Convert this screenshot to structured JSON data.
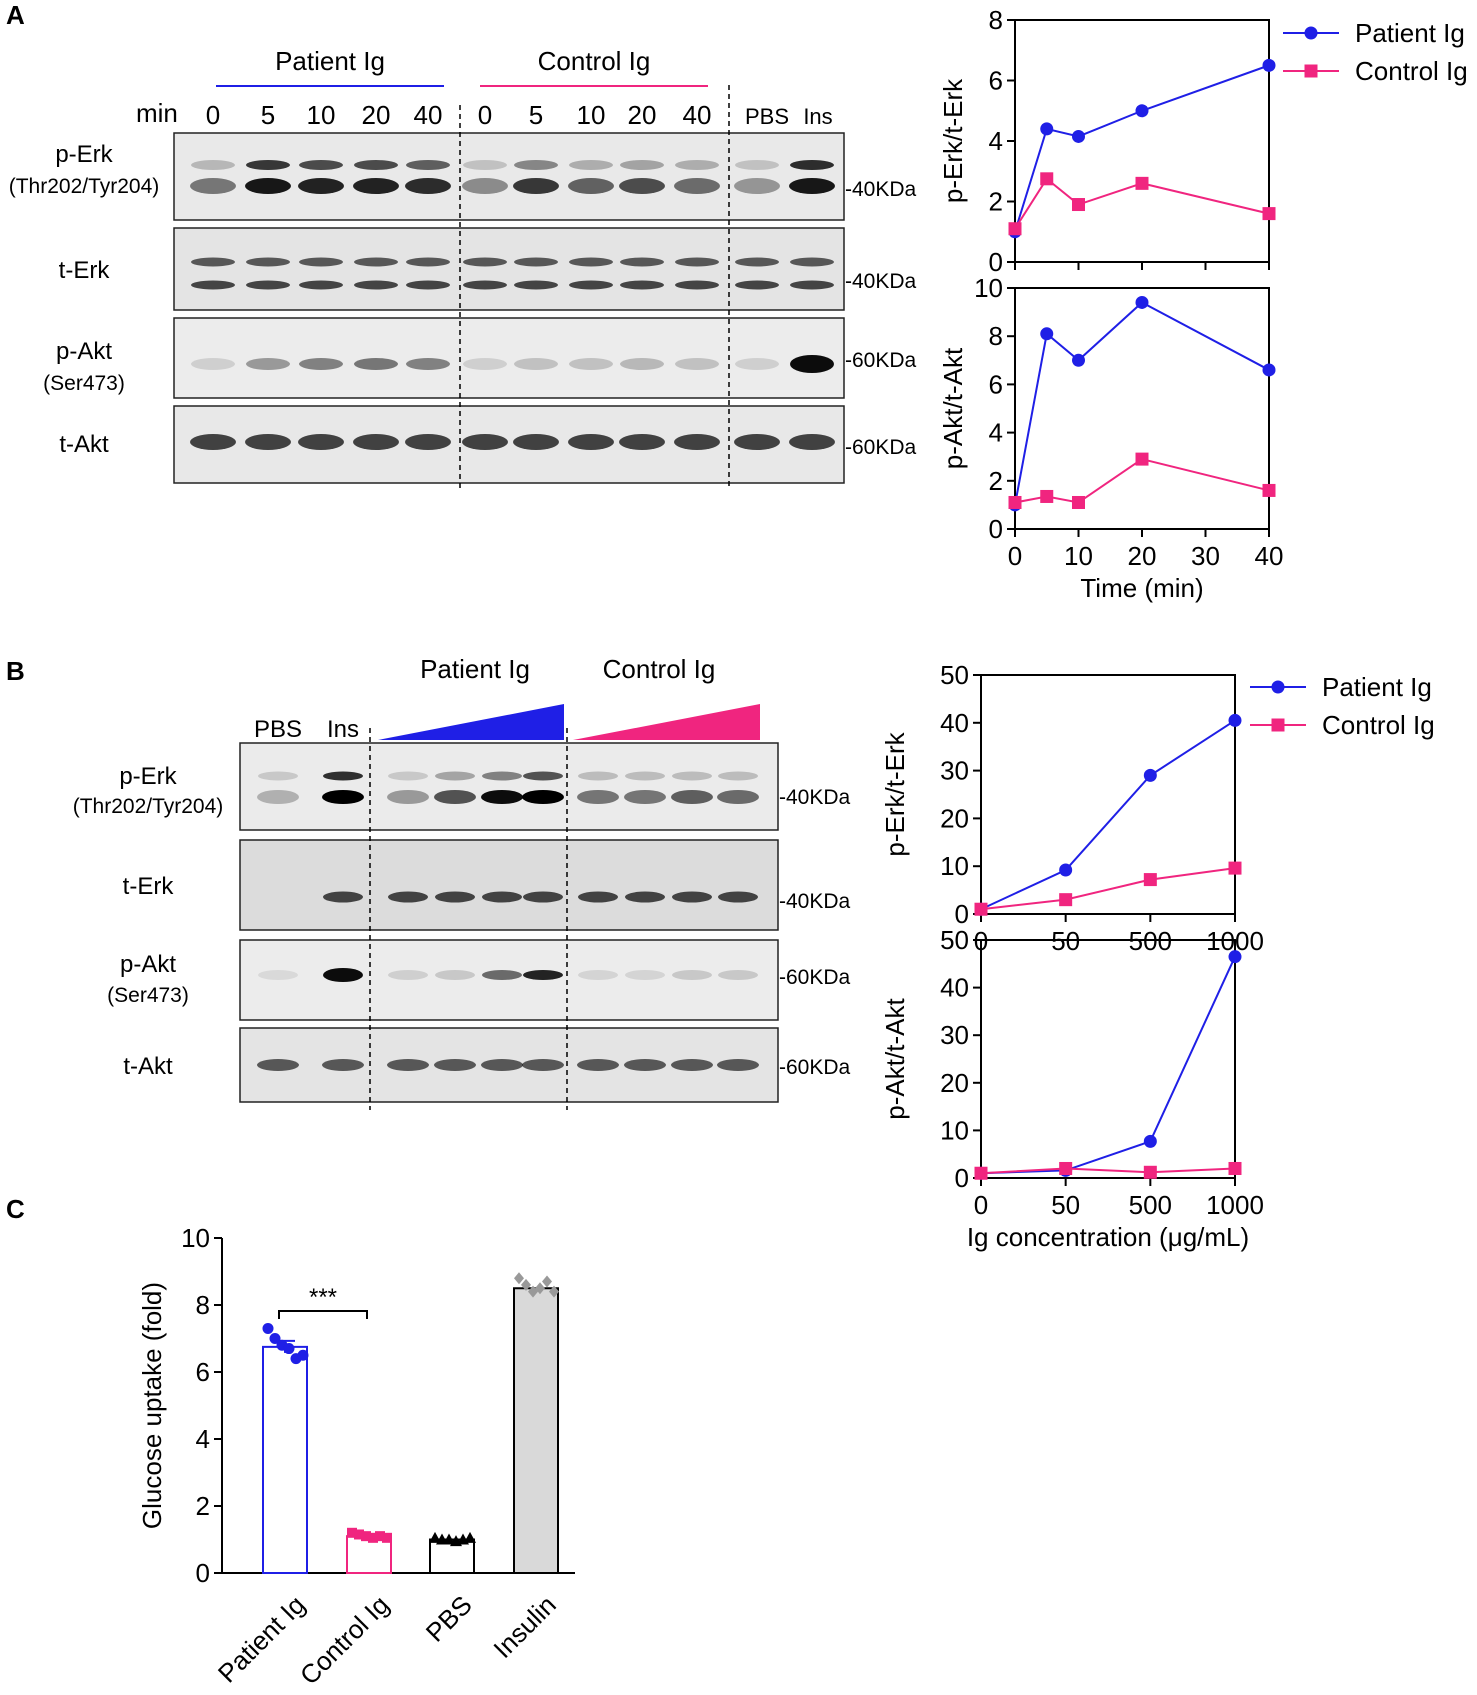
{
  "colors": {
    "patient": "#1f1fe6",
    "control": "#f0257f",
    "insulin_bar": "#d9d9d9"
  },
  "panel_a": {
    "label": "A",
    "blot": {
      "group_patient": "Patient Ig",
      "group_control": "Control Ig",
      "min_label": "min",
      "lanes": [
        "0",
        "5",
        "10",
        "20",
        "40",
        "0",
        "5",
        "10",
        "20",
        "40"
      ],
      "lane_pbs": "PBS",
      "lane_ins": "Ins",
      "rows": [
        {
          "name": "p-Erk",
          "sub": "(Thr202/Tyr204)",
          "kda": "-40KDa"
        },
        {
          "name": "t-Erk",
          "sub": "",
          "kda": "-40KDa"
        },
        {
          "name": "p-Akt",
          "sub": "(Ser473)",
          "kda": "-60KDa"
        },
        {
          "name": "t-Akt",
          "sub": "",
          "kda": "-60KDa"
        }
      ]
    }
  },
  "panel_b": {
    "label": "B",
    "blot": {
      "group_patient": "Patient Ig",
      "group_control": "Control Ig",
      "lane_pbs": "PBS",
      "lane_ins": "Ins",
      "rows": [
        {
          "name": "p-Erk",
          "sub": "(Thr202/Tyr204)",
          "kda": "-40KDa"
        },
        {
          "name": "t-Erk",
          "sub": "",
          "kda": "-40KDa"
        },
        {
          "name": "p-Akt",
          "sub": "(Ser473)",
          "kda": "-60KDa"
        },
        {
          "name": "t-Akt",
          "sub": "",
          "kda": "-60KDa"
        }
      ]
    }
  },
  "panel_c": {
    "label": "C"
  },
  "chart_data": [
    {
      "id": "a-perk",
      "type": "line",
      "ylabel": "p-Erk/t-Erk",
      "xlabel": "",
      "xlim": [
        0,
        40
      ],
      "ylim": [
        0,
        8
      ],
      "xticks": [],
      "yticks": [
        0,
        2,
        4,
        6,
        8
      ],
      "legend": "top-right",
      "series": [
        {
          "name": "Patient Ig",
          "x": [
            0,
            5,
            10,
            20,
            40
          ],
          "y": [
            1.0,
            4.4,
            4.15,
            5.0,
            6.5
          ]
        },
        {
          "name": "Control Ig",
          "x": [
            0,
            5,
            10,
            20,
            40
          ],
          "y": [
            1.1,
            2.75,
            1.9,
            2.6,
            1.6
          ]
        }
      ]
    },
    {
      "id": "a-pakt",
      "type": "line",
      "ylabel": "p-Akt/t-Akt",
      "xlabel": "Time (min)",
      "xlim": [
        0,
        40
      ],
      "ylim": [
        0,
        10
      ],
      "xticks": [
        0,
        10,
        20,
        30,
        40
      ],
      "yticks": [
        0,
        2,
        4,
        6,
        8,
        10
      ],
      "legend": "none",
      "series": [
        {
          "name": "Patient Ig",
          "x": [
            0,
            5,
            10,
            20,
            40
          ],
          "y": [
            1.0,
            8.1,
            7.0,
            9.4,
            6.6
          ]
        },
        {
          "name": "Control Ig",
          "x": [
            0,
            5,
            10,
            20,
            40
          ],
          "y": [
            1.1,
            1.35,
            1.1,
            2.9,
            1.6
          ]
        }
      ]
    },
    {
      "id": "b-perk",
      "type": "line",
      "ylabel": "p-Erk/t-Erk",
      "xlabel": "",
      "categories": [
        "0",
        "50",
        "500",
        "1000"
      ],
      "ylim": [
        0,
        50
      ],
      "yticks": [
        0,
        10,
        20,
        30,
        40,
        50
      ],
      "legend": "top-right",
      "series": [
        {
          "name": "Patient Ig",
          "values": [
            1.0,
            9.2,
            29.0,
            40.5
          ]
        },
        {
          "name": "Control Ig",
          "values": [
            1.0,
            3.0,
            7.2,
            9.6
          ]
        }
      ]
    },
    {
      "id": "b-pakt",
      "type": "line",
      "ylabel": "p-Akt/t-Akt",
      "xlabel": "Ig concentration (μg/mL)",
      "categories": [
        "0",
        "50",
        "500",
        "1000"
      ],
      "ylim": [
        0,
        50
      ],
      "yticks": [
        0,
        10,
        20,
        30,
        40,
        50
      ],
      "legend": "none",
      "series": [
        {
          "name": "Patient Ig",
          "values": [
            1.0,
            1.6,
            7.7,
            46.5
          ]
        },
        {
          "name": "Control Ig",
          "values": [
            1.0,
            2.0,
            1.2,
            2.0
          ]
        }
      ]
    },
    {
      "id": "c-glucose",
      "type": "bar",
      "ylabel": "Glucose uptake (fold)",
      "categories": [
        "Patient Ig",
        "Control Ig",
        "PBS",
        "Insulin"
      ],
      "values": [
        6.75,
        1.1,
        1.0,
        8.5
      ],
      "sem": [
        0.18,
        0.05,
        0.0,
        0.0
      ],
      "points": [
        [
          7.3,
          7.0,
          6.8,
          6.7,
          6.4,
          6.5
        ],
        [
          1.2,
          1.15,
          1.1,
          1.05,
          1.1,
          1.05
        ],
        [
          1.05,
          1.0,
          1.0,
          0.95,
          1.0,
          1.05
        ],
        [
          8.8,
          8.6,
          8.4,
          8.5,
          8.7,
          8.4
        ]
      ],
      "ylim": [
        0,
        10
      ],
      "yticks": [
        0,
        2,
        4,
        6,
        8,
        10
      ],
      "significance": "***"
    }
  ]
}
